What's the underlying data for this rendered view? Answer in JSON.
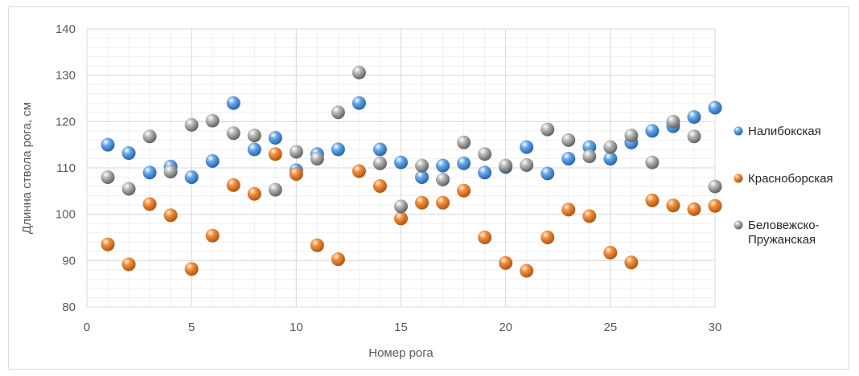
{
  "chart_data": {
    "type": "scatter",
    "title": "",
    "xlabel": "Номер рога",
    "ylabel": "Длинна ствола рога, см",
    "xlim": [
      0,
      30
    ],
    "ylim": [
      80,
      140
    ],
    "x_ticks": [
      "0",
      "5",
      "10",
      "15",
      "20",
      "25",
      "30"
    ],
    "y_ticks": [
      "80",
      "90",
      "100",
      "110",
      "120",
      "130",
      "140"
    ],
    "grid": true,
    "legend_position": "right",
    "series": [
      {
        "name": "Налибокская",
        "color": "#4a90d9",
        "x": [
          1,
          2,
          3,
          4,
          5,
          6,
          7,
          8,
          9,
          10,
          11,
          12,
          13,
          14,
          15,
          16,
          17,
          18,
          19,
          20,
          21,
          22,
          23,
          24,
          25,
          26,
          27,
          28,
          29,
          30
        ],
        "y": [
          115,
          113.2,
          109,
          110.3,
          108,
          111.5,
          124,
          114,
          116.5,
          109.5,
          113,
          114,
          124,
          114,
          111.2,
          108,
          110.5,
          111,
          109,
          110.2,
          114.5,
          108.8,
          112,
          114.5,
          112,
          115.5,
          118,
          119,
          121,
          123
        ]
      },
      {
        "name": "Красноборская",
        "color": "#e3741f",
        "x": [
          1,
          2,
          3,
          4,
          5,
          6,
          7,
          8,
          9,
          10,
          11,
          12,
          13,
          14,
          15,
          16,
          17,
          18,
          19,
          20,
          21,
          22,
          23,
          24,
          25,
          26,
          27,
          28,
          29,
          30
        ],
        "y": [
          93.5,
          89.2,
          102.2,
          99.8,
          88.2,
          95.4,
          106.3,
          104.4,
          113,
          108.7,
          93.3,
          90.3,
          109.3,
          106.1,
          99.1,
          102.5,
          102.5,
          105.1,
          95,
          89.5,
          87.8,
          95,
          101,
          99.6,
          91.7,
          89.6,
          103,
          101.9,
          101.1,
          101.8
        ]
      },
      {
        "name": "Беловежско-Пружанская",
        "color": "#9e9e9e",
        "x": [
          1,
          2,
          3,
          4,
          5,
          6,
          7,
          8,
          9,
          10,
          11,
          12,
          13,
          14,
          15,
          16,
          17,
          18,
          19,
          20,
          21,
          22,
          23,
          24,
          25,
          26,
          27,
          28,
          29,
          30
        ],
        "y": [
          108,
          105.5,
          116.8,
          109.2,
          119.3,
          120.2,
          117.5,
          117,
          105.3,
          113.5,
          112,
          122,
          130.6,
          111,
          101.7,
          110.5,
          107.5,
          115.5,
          113,
          110.5,
          110.6,
          118.3,
          116,
          112.5,
          114.5,
          117,
          111.2,
          120,
          116.8,
          106
        ]
      }
    ]
  }
}
